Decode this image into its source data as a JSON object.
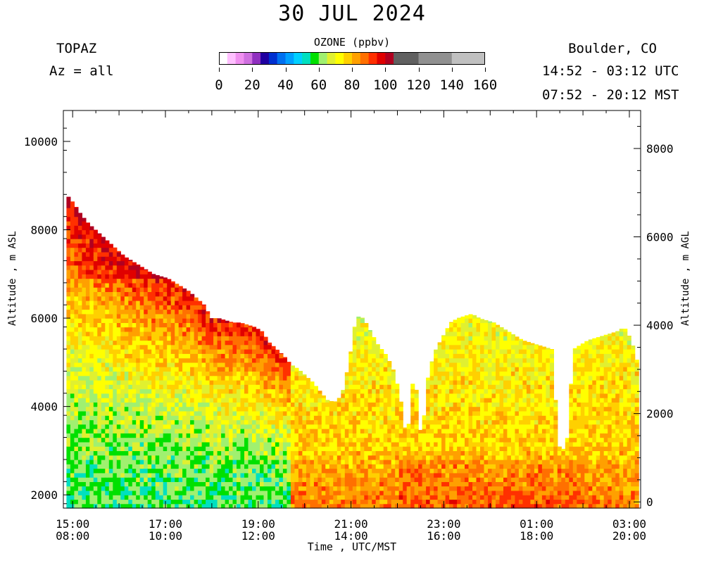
{
  "chart_data": {
    "type": "heatmap",
    "title": "30 JUL 2024",
    "instrument": "TOPAZ",
    "azimuth": "Az = all",
    "site": "Boulder, CO",
    "utc_range": "14:52 - 03:12 UTC",
    "mst_range": "07:52 - 20:12 MST",
    "colorbar": {
      "title": "OZONE (ppbv)",
      "range": [
        0,
        160
      ],
      "tick_labels": [
        "0",
        "20",
        "40",
        "60",
        "80",
        "100",
        "120",
        "140",
        "160"
      ],
      "bins": [
        {
          "from": 0,
          "to": 5,
          "color": "#ffffff"
        },
        {
          "from": 5,
          "to": 10,
          "color": "#ffc0ff"
        },
        {
          "from": 10,
          "to": 15,
          "color": "#f090f0"
        },
        {
          "from": 15,
          "to": 20,
          "color": "#d070e0"
        },
        {
          "from": 20,
          "to": 25,
          "color": "#9030c0"
        },
        {
          "from": 25,
          "to": 30,
          "color": "#2000a0"
        },
        {
          "from": 30,
          "to": 35,
          "color": "#0030d0"
        },
        {
          "from": 35,
          "to": 40,
          "color": "#0070f0"
        },
        {
          "from": 40,
          "to": 45,
          "color": "#00a0ff"
        },
        {
          "from": 45,
          "to": 50,
          "color": "#00d0ff"
        },
        {
          "from": 50,
          "to": 55,
          "color": "#00e0c0"
        },
        {
          "from": 55,
          "to": 60,
          "color": "#00e000"
        },
        {
          "from": 60,
          "to": 65,
          "color": "#a0f070"
        },
        {
          "from": 65,
          "to": 70,
          "color": "#e0f030"
        },
        {
          "from": 70,
          "to": 75,
          "color": "#ffff00"
        },
        {
          "from": 75,
          "to": 80,
          "color": "#ffd000"
        },
        {
          "from": 80,
          "to": 85,
          "color": "#ffa000"
        },
        {
          "from": 85,
          "to": 90,
          "color": "#ff7000"
        },
        {
          "from": 90,
          "to": 95,
          "color": "#ff3000"
        },
        {
          "from": 95,
          "to": 100,
          "color": "#e00000"
        },
        {
          "from": 100,
          "to": 105,
          "color": "#b00020"
        },
        {
          "from": 105,
          "to": 120,
          "color": "#606060"
        },
        {
          "from": 120,
          "to": 140,
          "color": "#909090"
        },
        {
          "from": 140,
          "to": 160,
          "color": "#c0c0c0"
        }
      ]
    },
    "xlabel": "Time , UTC/MST",
    "x_ticks": [
      {
        "utc": "15:00",
        "mst": "08:00"
      },
      {
        "utc": "17:00",
        "mst": "10:00"
      },
      {
        "utc": "19:00",
        "mst": "12:00"
      },
      {
        "utc": "21:00",
        "mst": "14:00"
      },
      {
        "utc": "23:00",
        "mst": "16:00"
      },
      {
        "utc": "01:00",
        "mst": "18:00"
      },
      {
        "utc": "03:00",
        "mst": "20:00"
      }
    ],
    "y_left": {
      "label": "Altitude , m ASL",
      "range": [
        1700,
        10700
      ],
      "ticks": [
        2000,
        4000,
        6000,
        8000,
        10000
      ]
    },
    "y_right": {
      "label": "Altitude , m AGL",
      "range": [
        -140,
        8860
      ],
      "ticks": [
        0,
        2000,
        4000,
        6000,
        8000
      ]
    },
    "profile_top_m_asl": [
      [
        8800,
        8600,
        8350,
        8150,
        8000,
        7850,
        7700,
        7550,
        7400,
        7300,
        7200,
        7100,
        7000,
        6950,
        6900,
        6800,
        6700,
        6600,
        6450,
        6300
      ],
      [
        6000,
        6000,
        5950,
        5900,
        5900,
        5850,
        5800,
        5700,
        5450,
        5300,
        5150,
        4950,
        4850,
        4700,
        4550,
        4350,
        4150,
        4100,
        4250,
        5000
      ],
      [
        6050,
        6000,
        5700,
        5400,
        5200,
        4900,
        4300,
        3200,
        4900,
        3200,
        4800,
        5300,
        5600,
        5900,
        6000,
        6050,
        6100,
        6000,
        5950,
        5900
      ],
      [
        5800,
        5700,
        5600,
        5500,
        5450,
        5400,
        5350,
        5300,
        3100,
        3000,
        5300,
        5400,
        5500,
        5550,
        5600,
        5650,
        5700,
        5800,
        5500,
        4900
      ]
    ],
    "field_summary": [
      {
        "period": "15:00-17:00",
        "band": "7000-8800",
        "ozone_ppbv": "85-100"
      },
      {
        "period": "15:00-19:40",
        "band": "5200-7000",
        "ozone_ppbv": "75-95"
      },
      {
        "period": "15:00-19:40",
        "band": "1800-4000",
        "ozone_ppbv": "55-70"
      },
      {
        "period": "19:40-03:12",
        "band": "1800-3000",
        "ozone_ppbv": "80-95"
      },
      {
        "period": "19:40-03:12",
        "band": "3000-6000",
        "ozone_ppbv": "65-80"
      }
    ]
  }
}
